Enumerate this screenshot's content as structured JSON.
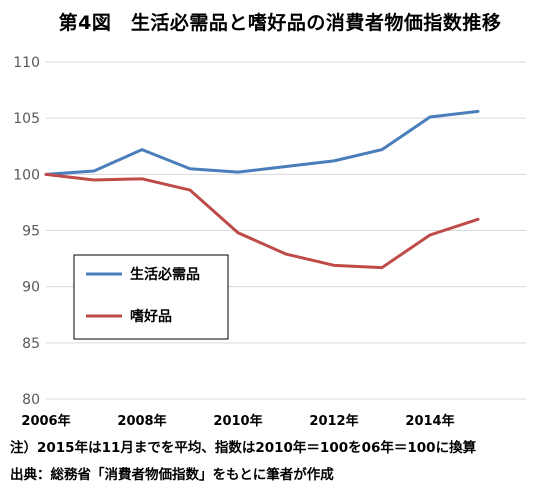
{
  "title": "第4図　生活必需品と嗜好品の消費者物価指数推移",
  "notes": {
    "note1": "注）2015年は11月までを平均、指数は2010年＝100を06年＝100に換算",
    "note2": "出典：総務省「消費者物価指数」をもとに筆者が作成"
  },
  "colors": {
    "necessities": "#4a7ebb",
    "luxury": "#be4b48",
    "grid": "#d9d9d9",
    "legend_border": "#000000"
  },
  "chart_data": {
    "type": "line",
    "title": "第4図　生活必需品と嗜好品の消費者物価指数推移",
    "x": [
      2006,
      2007,
      2008,
      2009,
      2010,
      2011,
      2012,
      2013,
      2014,
      2015
    ],
    "x_tick_labels": [
      "2006年",
      "2008年",
      "2010年",
      "2012年",
      "2014年"
    ],
    "x_tick_values": [
      2006,
      2008,
      2010,
      2012,
      2014
    ],
    "ylim": [
      80,
      110
    ],
    "y_ticks": [
      80,
      85,
      90,
      95,
      100,
      105,
      110
    ],
    "grid": "horizontal",
    "legend_position": "bottom-left",
    "series": [
      {
        "name": "生活必需品",
        "color": "#4a7ebb",
        "values": [
          100.0,
          100.3,
          102.2,
          100.5,
          100.2,
          100.7,
          101.2,
          102.2,
          105.1,
          105.6
        ]
      },
      {
        "name": "嗜好品",
        "color": "#be4b48",
        "values": [
          100.0,
          99.5,
          99.6,
          98.6,
          94.8,
          92.9,
          91.9,
          91.7,
          94.6,
          96.0
        ]
      }
    ]
  }
}
